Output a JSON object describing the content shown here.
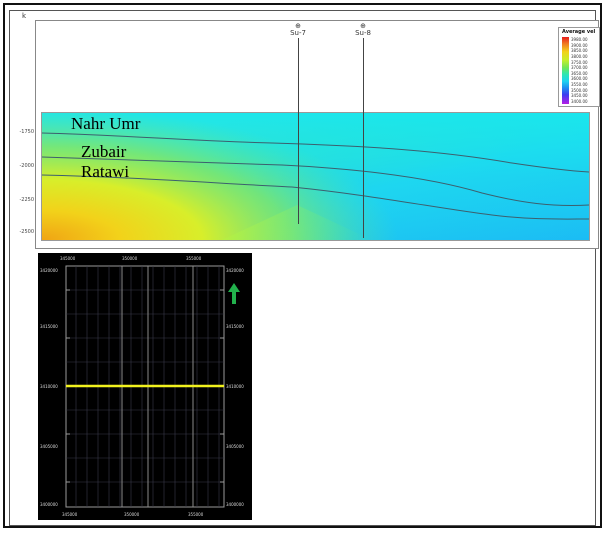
{
  "figure": {
    "corner_mark": "k",
    "formations": [
      {
        "name": "Nahr Umr"
      },
      {
        "name": "Zubair"
      },
      {
        "name": "Ratawi"
      }
    ],
    "wells": [
      {
        "name": "Su-7"
      },
      {
        "name": "Su-8"
      }
    ],
    "legend": {
      "title": "Average vel",
      "values": [
        "3980.00",
        "3900.00",
        "3850.00",
        "3800.00",
        "3750.00",
        "3700.00",
        "3650.00",
        "3600.00",
        "3550.00",
        "3500.00",
        "3450.00",
        "3400.00"
      ]
    },
    "depth_ticks": [
      "-1750",
      "-2000",
      "-2250",
      "-2500"
    ],
    "basemap": {
      "top_ticks": [
        "345000",
        "350000",
        "355000"
      ],
      "bottom_ticks": [
        "345000",
        "350000",
        "355000"
      ],
      "left_ticks": [
        "3420000",
        "3415000",
        "3410000",
        "3405000",
        "3400000"
      ],
      "right_ticks": [
        "3420000",
        "3415000",
        "3410000",
        "3405000",
        "3400000"
      ]
    }
  },
  "colors": {
    "line_yellow": "#f2f21e",
    "north_arrow": "#22b14c"
  }
}
